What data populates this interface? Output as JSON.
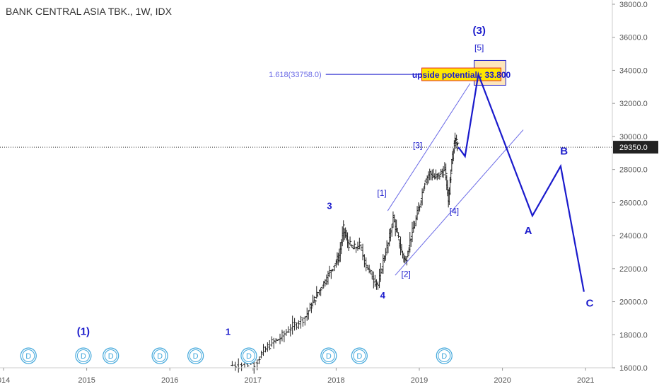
{
  "header": {
    "title": "BANK CENTRAL ASIA TBK., 1W, IDX"
  },
  "colors": {
    "wave": "#1a1acc",
    "channel": "#6a6ae6",
    "candle": "#222222",
    "price_line": "#333333",
    "event_circle": "#45a9dc",
    "target_box": "#fde6bb",
    "annotation_bg": "#ffe600",
    "annotation_border": "#e3241c"
  },
  "chart_data": {
    "type": "candlestick",
    "title": "BANK CENTRAL ASIA TBK., 1W, IDX",
    "x_axis": {
      "start": "2014-01",
      "end": "2021-06",
      "ticks": [
        "014",
        "2015",
        "2016",
        "2017",
        "2018",
        "2019",
        "2020",
        "2021"
      ]
    },
    "y_axis": {
      "range": [
        16000,
        38000
      ],
      "ticks": [
        "16000.0",
        "18000.0",
        "20000.0",
        "22000.0",
        "24000.0",
        "26000.0",
        "28000.0",
        "30000.0",
        "32000.0",
        "34000.0",
        "36000.0",
        "38000.0"
      ]
    },
    "last_price": "29350.0",
    "price_series": [
      {
        "t": 2016.75,
        "c": 16150
      },
      {
        "t": 2016.9,
        "c": 16200
      },
      {
        "t": 2017.05,
        "c": 16300
      },
      {
        "t": 2017.15,
        "c": 17000
      },
      {
        "t": 2017.25,
        "c": 17500
      },
      {
        "t": 2017.35,
        "c": 17800
      },
      {
        "t": 2017.45,
        "c": 18300
      },
      {
        "t": 2017.55,
        "c": 18700
      },
      {
        "t": 2017.65,
        "c": 19100
      },
      {
        "t": 2017.72,
        "c": 19800
      },
      {
        "t": 2017.78,
        "c": 20400
      },
      {
        "t": 2017.85,
        "c": 21000
      },
      {
        "t": 2017.92,
        "c": 21600
      },
      {
        "t": 2018.0,
        "c": 22300
      },
      {
        "t": 2018.05,
        "c": 22800
      },
      {
        "t": 2018.1,
        "c": 24400
      },
      {
        "t": 2018.15,
        "c": 23600
      },
      {
        "t": 2018.22,
        "c": 23200
      },
      {
        "t": 2018.3,
        "c": 23400
      },
      {
        "t": 2018.38,
        "c": 22200
      },
      {
        "t": 2018.45,
        "c": 21500
      },
      {
        "t": 2018.52,
        "c": 21000
      },
      {
        "t": 2018.58,
        "c": 22500
      },
      {
        "t": 2018.64,
        "c": 23500
      },
      {
        "t": 2018.7,
        "c": 25100
      },
      {
        "t": 2018.75,
        "c": 24000
      },
      {
        "t": 2018.8,
        "c": 23000
      },
      {
        "t": 2018.85,
        "c": 22400
      },
      {
        "t": 2018.9,
        "c": 23700
      },
      {
        "t": 2018.96,
        "c": 24700
      },
      {
        "t": 2019.02,
        "c": 25900
      },
      {
        "t": 2019.08,
        "c": 27300
      },
      {
        "t": 2019.14,
        "c": 27800
      },
      {
        "t": 2019.2,
        "c": 27500
      },
      {
        "t": 2019.26,
        "c": 27700
      },
      {
        "t": 2019.32,
        "c": 28000
      },
      {
        "t": 2019.36,
        "c": 26100
      },
      {
        "t": 2019.4,
        "c": 28600
      },
      {
        "t": 2019.44,
        "c": 29900
      },
      {
        "t": 2019.47,
        "c": 29350
      }
    ],
    "wave_path": [
      {
        "t": 2019.47,
        "v": 29350
      },
      {
        "t": 2019.55,
        "v": 28800
      },
      {
        "t": 2019.71,
        "v": 33758
      },
      {
        "t": 2020.36,
        "v": 25200
      },
      {
        "t": 2020.7,
        "v": 28200
      },
      {
        "t": 2020.98,
        "v": 20600
      }
    ],
    "channel_lines": [
      {
        "from": {
          "t": 2018.62,
          "v": 25500
        },
        "to": {
          "t": 2019.61,
          "v": 33200
        }
      },
      {
        "from": {
          "t": 2018.71,
          "v": 21600
        },
        "to": {
          "t": 2020.25,
          "v": 30400
        }
      }
    ],
    "fib_level": {
      "label": "1.618(33758.0)",
      "value": 33758,
      "t_start": 2017.45,
      "t_end": 2019.03
    },
    "target_zone": {
      "t_start": 2019.66,
      "t_end": 2020.04,
      "v_low": 33100,
      "v_high": 34600
    },
    "annotation": "upside potential : 33.800",
    "wave_labels": [
      {
        "text": "(3)",
        "t": 2019.72,
        "v": 36200,
        "style": "bold-large"
      },
      {
        "text": "[5]",
        "t": 2019.72,
        "v": 35200,
        "style": "sub"
      },
      {
        "text": "(1)",
        "t": 2014.96,
        "v": 18000,
        "style": "bold-large"
      },
      {
        "text": "1",
        "t": 2016.7,
        "v": 18000,
        "style": "bold"
      },
      {
        "text": "3",
        "t": 2017.92,
        "v": 25600,
        "style": "bold"
      },
      {
        "text": "4",
        "t": 2018.56,
        "v": 20200,
        "style": "bold"
      },
      {
        "text": "[1]",
        "t": 2018.55,
        "v": 26400,
        "style": "sub"
      },
      {
        "text": "[2]",
        "t": 2018.84,
        "v": 21500,
        "style": "sub"
      },
      {
        "text": "[3]",
        "t": 2018.98,
        "v": 29300,
        "style": "sub"
      },
      {
        "text": "[4]",
        "t": 2019.42,
        "v": 25300,
        "style": "sub"
      },
      {
        "text": "A",
        "t": 2020.31,
        "v": 24100,
        "style": "bold-large"
      },
      {
        "text": "B",
        "t": 2020.74,
        "v": 28900,
        "style": "bold-large"
      },
      {
        "text": "C",
        "t": 2021.05,
        "v": 19700,
        "style": "bold-large"
      }
    ],
    "event_markers": [
      {
        "label": "D",
        "t": 2014.3
      },
      {
        "label": "D",
        "t": 2014.96
      },
      {
        "label": "D",
        "t": 2015.29
      },
      {
        "label": "D",
        "t": 2015.88
      },
      {
        "label": "D",
        "t": 2016.31
      },
      {
        "label": "D",
        "t": 2016.95
      },
      {
        "label": "D",
        "t": 2017.91
      },
      {
        "label": "D",
        "t": 2018.28
      },
      {
        "label": "D",
        "t": 2019.3
      }
    ]
  }
}
